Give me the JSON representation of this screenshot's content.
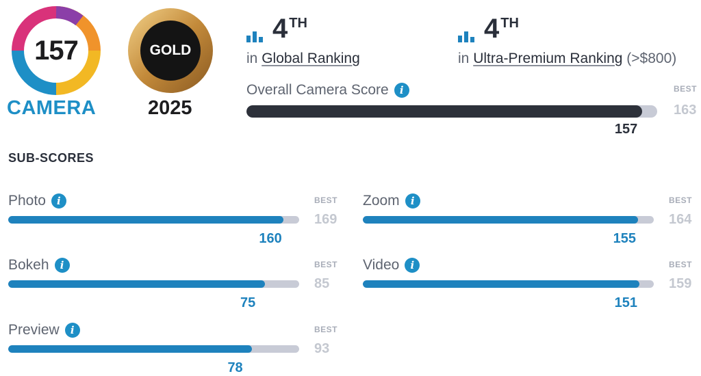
{
  "camera_badge": {
    "score": "157",
    "label": "CAMERA"
  },
  "gold_badge": {
    "label": "GOLD",
    "year": "2025"
  },
  "rankings": [
    {
      "position": "4",
      "suffix": "TH",
      "prefix": "in",
      "name": "Global Ranking",
      "extra": ""
    },
    {
      "position": "4",
      "suffix": "TH",
      "prefix": "in",
      "name": "Ultra-Premium Ranking",
      "extra": "(>$800)"
    }
  ],
  "overall": {
    "label": "Overall Camera Score",
    "value": 157,
    "best_label": "BEST",
    "best": 163
  },
  "subscores_heading": "SUB-SCORES",
  "subscores": [
    {
      "name": "Photo",
      "value": 160,
      "best_label": "BEST",
      "best": 169
    },
    {
      "name": "Zoom",
      "value": 155,
      "best_label": "BEST",
      "best": 164
    },
    {
      "name": "Bokeh",
      "value": 75,
      "best_label": "BEST",
      "best": 85
    },
    {
      "name": "Video",
      "value": 151,
      "best_label": "BEST",
      "best": 159
    },
    {
      "name": "Preview",
      "value": 78,
      "best_label": "BEST",
      "best": 93
    }
  ],
  "icons": {
    "info": "i",
    "ranking": "bar-chart-icon"
  },
  "colors": {
    "accent": "#1e8fc6",
    "bar_fill": "#1e82bd",
    "overall_fill": "#2d313a",
    "track": "#c8cbd6",
    "gold": "#c9973d"
  }
}
